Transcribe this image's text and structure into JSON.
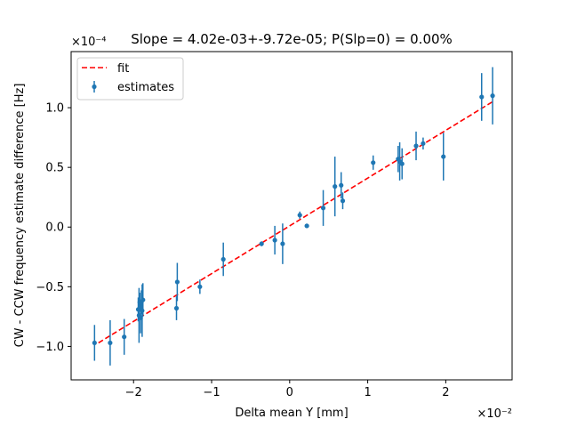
{
  "chart_data": {
    "type": "scatter",
    "title": "Slope = 4.02e-03+-9.72e-05; P(Slp=0) = 0.00%",
    "xlabel": "Delta mean Y [mm]",
    "ylabel": "CW - CCW frequency estimate difference [Hz]",
    "x_offset_label": "×10⁻²",
    "y_offset_label": "×10⁻⁴",
    "xlim": [
      -2.8,
      2.85
    ],
    "ylim": [
      -1.28,
      1.47
    ],
    "x_ticks": [
      -2,
      -1,
      0,
      1,
      2
    ],
    "x_tick_labels": [
      "−2",
      "−1",
      "0",
      "1",
      "2"
    ],
    "y_ticks": [
      -1.0,
      -0.5,
      0.0,
      0.5,
      1.0
    ],
    "y_tick_labels": [
      "−1.0",
      "−0.5",
      "0.0",
      "0.5",
      "1.0"
    ],
    "legend_position": "upper-left",
    "series": [
      {
        "name": "estimates",
        "kind": "errorbar",
        "color": "#1f77b4",
        "points": [
          {
            "x": -2.5,
            "y": -0.97,
            "err": 0.15
          },
          {
            "x": -2.3,
            "y": -0.97,
            "err": 0.19
          },
          {
            "x": -2.12,
            "y": -0.92,
            "err": 0.15
          },
          {
            "x": -1.94,
            "y": -0.69,
            "err": 0.1
          },
          {
            "x": -1.93,
            "y": -0.74,
            "err": 0.23
          },
          {
            "x": -1.92,
            "y": -0.63,
            "err": 0.08
          },
          {
            "x": -1.91,
            "y": -0.76,
            "err": 0.13
          },
          {
            "x": -1.9,
            "y": -0.63,
            "err": 0.1
          },
          {
            "x": -1.89,
            "y": -0.7,
            "err": 0.22
          },
          {
            "x": -1.88,
            "y": -0.61,
            "err": 0.14
          },
          {
            "x": -1.45,
            "y": -0.68,
            "err": 0.1
          },
          {
            "x": -1.44,
            "y": -0.46,
            "err": 0.16
          },
          {
            "x": -1.15,
            "y": -0.5,
            "err": 0.06
          },
          {
            "x": -0.85,
            "y": -0.27,
            "err": 0.14
          },
          {
            "x": -0.36,
            "y": -0.14,
            "err": 0.02
          },
          {
            "x": -0.19,
            "y": -0.11,
            "err": 0.12
          },
          {
            "x": -0.09,
            "y": -0.14,
            "err": 0.17
          },
          {
            "x": 0.13,
            "y": 0.1,
            "err": 0.03
          },
          {
            "x": 0.22,
            "y": 0.01,
            "err": 0.0
          },
          {
            "x": 0.43,
            "y": 0.16,
            "err": 0.15
          },
          {
            "x": 0.58,
            "y": 0.34,
            "err": 0.25
          },
          {
            "x": 0.66,
            "y": 0.35,
            "err": 0.11
          },
          {
            "x": 0.68,
            "y": 0.22,
            "err": 0.07
          },
          {
            "x": 1.07,
            "y": 0.54,
            "err": 0.06
          },
          {
            "x": 1.39,
            "y": 0.57,
            "err": 0.11
          },
          {
            "x": 1.41,
            "y": 0.55,
            "err": 0.16
          },
          {
            "x": 1.44,
            "y": 0.53,
            "err": 0.13
          },
          {
            "x": 1.62,
            "y": 0.68,
            "err": 0.12
          },
          {
            "x": 1.71,
            "y": 0.7,
            "err": 0.05
          },
          {
            "x": 1.97,
            "y": 0.59,
            "err": 0.2
          },
          {
            "x": 2.46,
            "y": 1.09,
            "err": 0.2
          },
          {
            "x": 2.6,
            "y": 1.1,
            "err": 0.24
          }
        ]
      },
      {
        "name": "fit",
        "kind": "line",
        "color": "#ff0000",
        "style": "dashed",
        "x": [
          -2.45,
          2.6
        ],
        "y": [
          -0.97,
          1.05
        ]
      }
    ]
  }
}
